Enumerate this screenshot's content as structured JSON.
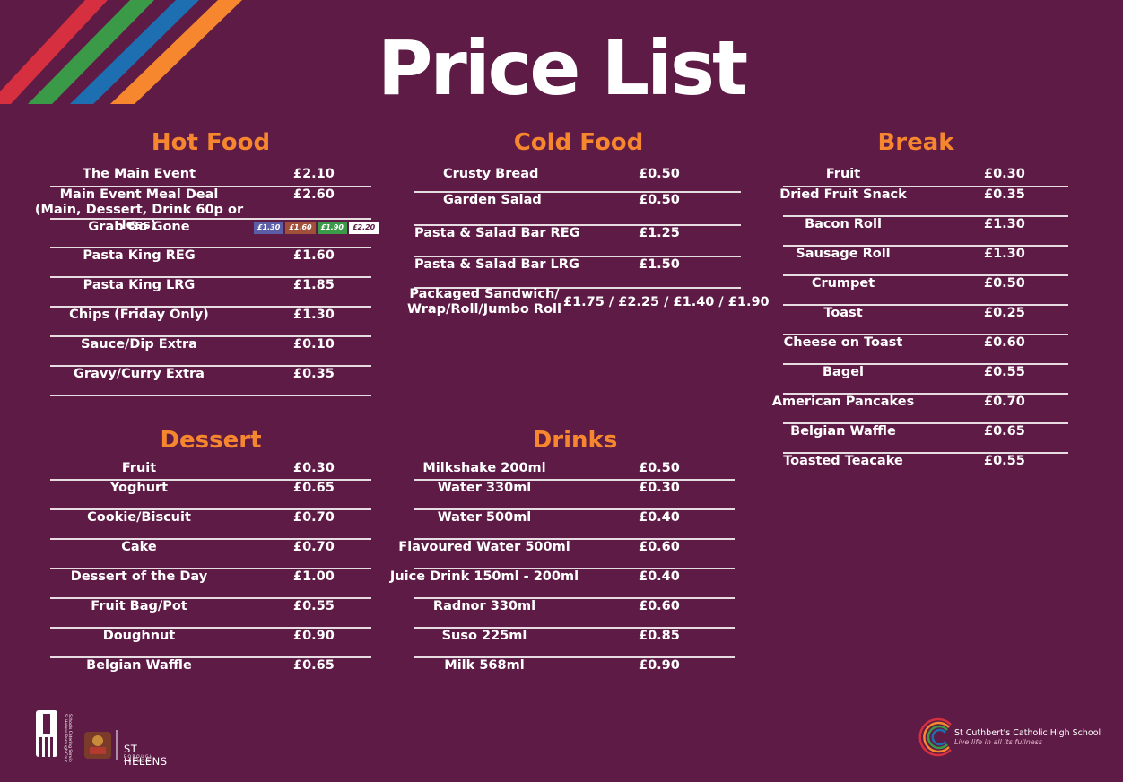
{
  "title": "Price List",
  "colors": {
    "background": "#5e1b45",
    "accent": "#f6872e",
    "stripe_red": "#d62f3f",
    "stripe_green": "#3a9a48",
    "stripe_blue": "#1d6fb1",
    "stripe_orange": "#f6872e"
  },
  "sections": {
    "hot_food": {
      "title": "Hot Food",
      "items": [
        {
          "name": "The Main Event",
          "price": "£2.10"
        },
        {
          "name": "Main Event Meal Deal",
          "name2": "(Main, Dessert, Drink 60p or less)",
          "price": "£2.60"
        },
        {
          "name": "Grab Go Gone",
          "price": ""
        },
        {
          "name": "Pasta King REG",
          "price": "£1.60"
        },
        {
          "name": "Pasta King LRG",
          "price": "£1.85"
        },
        {
          "name": "Chips (Friday Only)",
          "price": "£1.30"
        },
        {
          "name": "Sauce/Dip Extra",
          "price": "£0.10"
        },
        {
          "name": "Gravy/Curry Extra",
          "price": "£0.35"
        }
      ],
      "grab_go_gone_prices": [
        {
          "label": "£1.30",
          "color": "#5b5ea6"
        },
        {
          "label": "£1.60",
          "color": "#a1503a"
        },
        {
          "label": "£1.90",
          "color": "#3a9a48"
        },
        {
          "label": "£2.20",
          "color": "#ffffff"
        }
      ]
    },
    "cold_food": {
      "title": "Cold Food",
      "items": [
        {
          "name": "Crusty Bread",
          "price": "£0.50"
        },
        {
          "name": "Garden Salad",
          "price": "£0.50"
        },
        {
          "name": "Pasta & Salad Bar REG",
          "price": "£1.25"
        },
        {
          "name": "Pasta & Salad Bar LRG",
          "price": "£1.50"
        },
        {
          "name": "Packaged Sandwich/",
          "name2": "Wrap/Roll/Jumbo Roll",
          "price": "£1.75 / £2.25 / £1.40 / £1.90"
        }
      ]
    },
    "break": {
      "title": "Break",
      "items": [
        {
          "name": "Fruit",
          "price": "£0.30"
        },
        {
          "name": "Dried Fruit Snack",
          "price": "£0.35"
        },
        {
          "name": "Bacon Roll",
          "price": "£1.30"
        },
        {
          "name": "Sausage Roll",
          "price": "£1.30"
        },
        {
          "name": "Crumpet",
          "price": "£0.50"
        },
        {
          "name": "Toast",
          "price": "£0.25"
        },
        {
          "name": "Cheese on Toast",
          "price": "£0.60"
        },
        {
          "name": "Bagel",
          "price": "£0.55"
        },
        {
          "name": "American Pancakes",
          "price": "£0.70"
        },
        {
          "name": "Belgian Waffle",
          "price": "£0.65"
        },
        {
          "name": "Toasted Teacake",
          "price": "£0.55"
        }
      ]
    },
    "dessert": {
      "title": "Dessert",
      "items": [
        {
          "name": "Fruit",
          "price": "£0.30"
        },
        {
          "name": "Yoghurt",
          "price": "£0.65"
        },
        {
          "name": "Cookie/Biscuit",
          "price": "£0.70"
        },
        {
          "name": "Cake",
          "price": "£0.70"
        },
        {
          "name": "Dessert of the Day",
          "price": "£1.00"
        },
        {
          "name": "Fruit Bag/Pot",
          "price": "£0.55"
        },
        {
          "name": "Doughnut",
          "price": "£0.90"
        },
        {
          "name": "Belgian Waffle",
          "price": "£0.65"
        }
      ]
    },
    "drinks": {
      "title": "Drinks",
      "items": [
        {
          "name": "Milkshake 200ml",
          "price": "£0.50"
        },
        {
          "name": "Water 330ml",
          "price": "£0.30"
        },
        {
          "name": "Water 500ml",
          "price": "£0.40"
        },
        {
          "name": "Flavoured Water 500ml",
          "price": "£0.60"
        },
        {
          "name": "Juice Drink 150ml - 200ml",
          "price": "£0.40"
        },
        {
          "name": "Radnor 330ml",
          "price": "£0.60"
        },
        {
          "name": "Suso 225ml",
          "price": "£0.85"
        },
        {
          "name": "Milk 568ml",
          "price": "£0.90"
        }
      ]
    }
  },
  "footer": {
    "catering_text": "St Helens Borough Council Schools Catering Service",
    "council_name": "ST HELENS",
    "council_sub": "BOROUGH COUNCIL",
    "school_name": "St Cuthbert's Catholic High School",
    "school_motto": "Live life in all its fullness"
  }
}
